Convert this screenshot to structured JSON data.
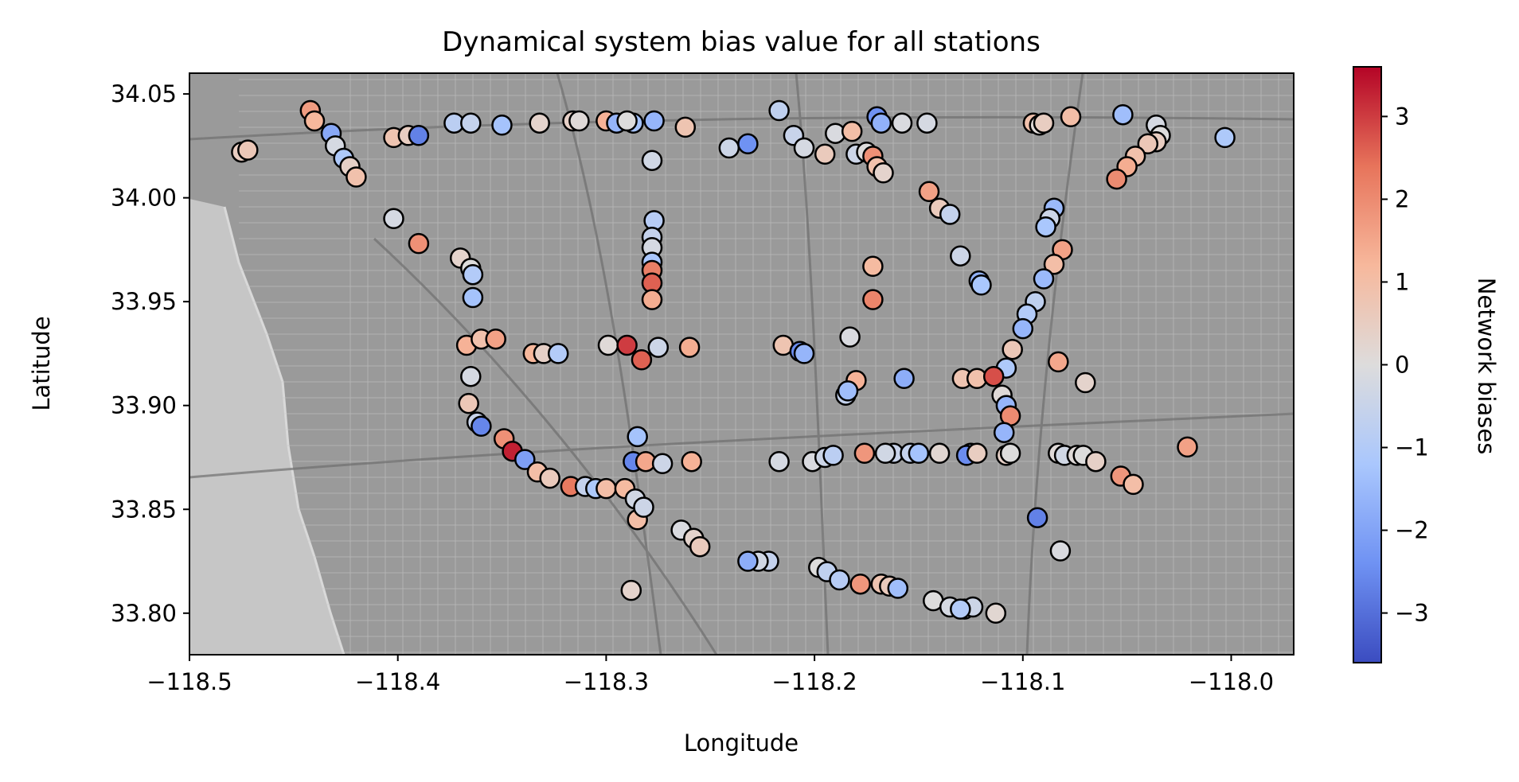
{
  "chart_data": {
    "type": "scatter",
    "title": "Dynamical system bias value for all stations",
    "xlabel": "Longitude",
    "ylabel": "Latitude",
    "xlim": [
      -118.5,
      -117.97
    ],
    "ylim": [
      33.78,
      34.06
    ],
    "xticks": [
      -118.5,
      -118.4,
      -118.3,
      -118.2,
      -118.1,
      -118.0
    ],
    "xtick_labels": [
      "−118.5",
      "−118.4",
      "−118.3",
      "−118.2",
      "−118.1",
      "−118.0"
    ],
    "yticks": [
      33.8,
      33.85,
      33.9,
      33.95,
      34.0,
      34.05
    ],
    "ytick_labels": [
      "33.80",
      "33.85",
      "33.90",
      "33.95",
      "34.00",
      "34.05"
    ],
    "grid": false,
    "background": "grayscale street basemap (Los Angeles area)",
    "colorbar": {
      "label": "Network biases",
      "colormap": "coolwarm",
      "range": [
        -3.6,
        3.6
      ],
      "ticks": [
        -3,
        -2,
        -1,
        0,
        1,
        2,
        3
      ],
      "tick_labels": [
        "−3",
        "−2",
        "−1",
        "0",
        "1",
        "2",
        "3"
      ],
      "colors": [
        "#3b4cc0",
        "#6f92f3",
        "#aac7fd",
        "#dddcdc",
        "#f7b89c",
        "#e7745b",
        "#b40426"
      ]
    },
    "points": [
      [
        -118.475,
        34.022,
        0.5
      ],
      [
        -118.472,
        34.023,
        0.7
      ],
      [
        -118.442,
        34.042,
        1.7
      ],
      [
        -118.44,
        34.037,
        1.2
      ],
      [
        -118.432,
        34.031,
        -1.9
      ],
      [
        -118.43,
        34.025,
        -0.2
      ],
      [
        -118.426,
        34.019,
        -1.1
      ],
      [
        -118.423,
        34.015,
        0.4
      ],
      [
        -118.42,
        34.01,
        0.9
      ],
      [
        -118.402,
        34.029,
        0.8
      ],
      [
        -118.395,
        34.03,
        0.5
      ],
      [
        -118.39,
        34.03,
        -2.7
      ],
      [
        -118.373,
        34.036,
        -0.8
      ],
      [
        -118.365,
        34.036,
        -0.6
      ],
      [
        -118.35,
        34.035,
        -1.3
      ],
      [
        -118.332,
        34.036,
        0.3
      ],
      [
        -118.316,
        34.037,
        0.4
      ],
      [
        -118.313,
        34.037,
        0.1
      ],
      [
        -118.3,
        34.037,
        1.3
      ],
      [
        -118.295,
        34.036,
        -1.6
      ],
      [
        -118.287,
        34.036,
        -1.3
      ],
      [
        -118.29,
        34.037,
        0.0
      ],
      [
        -118.277,
        34.037,
        -1.6
      ],
      [
        -118.262,
        34.034,
        0.8
      ],
      [
        -118.241,
        34.024,
        -0.4
      ],
      [
        -118.232,
        34.026,
        -2.4
      ],
      [
        -118.217,
        34.042,
        -0.7
      ],
      [
        -118.21,
        34.03,
        -0.5
      ],
      [
        -118.205,
        34.024,
        -0.2
      ],
      [
        -118.195,
        34.021,
        0.6
      ],
      [
        -118.19,
        34.031,
        -0.1
      ],
      [
        -118.182,
        34.032,
        1.0
      ],
      [
        -118.18,
        34.021,
        -0.4
      ],
      [
        -118.175,
        34.022,
        0.0
      ],
      [
        -118.172,
        34.02,
        1.9
      ],
      [
        -118.17,
        34.015,
        0.9
      ],
      [
        -118.167,
        34.012,
        0.3
      ],
      [
        -118.17,
        34.039,
        -2.4
      ],
      [
        -118.168,
        34.036,
        -1.7
      ],
      [
        -118.158,
        34.036,
        -0.1
      ],
      [
        -118.146,
        34.036,
        -0.2
      ],
      [
        -118.095,
        34.036,
        0.9
      ],
      [
        -118.092,
        34.035,
        0.1
      ],
      [
        -118.09,
        34.036,
        0.5
      ],
      [
        -118.077,
        34.039,
        1.0
      ],
      [
        -118.052,
        34.04,
        -1.4
      ],
      [
        -118.036,
        34.035,
        -0.2
      ],
      [
        -118.034,
        34.03,
        0.0
      ],
      [
        -118.036,
        34.027,
        0.5
      ],
      [
        -118.04,
        34.026,
        0.7
      ],
      [
        -118.046,
        34.02,
        0.9
      ],
      [
        -118.05,
        34.015,
        1.4
      ],
      [
        -118.055,
        34.009,
        2.0
      ],
      [
        -118.003,
        34.029,
        -1.1
      ],
      [
        -118.278,
        34.018,
        -0.3
      ],
      [
        -118.277,
        33.989,
        -0.9
      ],
      [
        -118.278,
        33.981,
        -0.6
      ],
      [
        -118.278,
        33.976,
        -0.2
      ],
      [
        -118.278,
        33.969,
        -1.2
      ],
      [
        -118.278,
        33.965,
        2.2
      ],
      [
        -118.278,
        33.959,
        2.6
      ],
      [
        -118.278,
        33.951,
        1.4
      ],
      [
        -118.402,
        33.99,
        -0.2
      ],
      [
        -118.39,
        33.978,
        1.9
      ],
      [
        -118.37,
        33.971,
        0.3
      ],
      [
        -118.365,
        33.966,
        0.0
      ],
      [
        -118.364,
        33.963,
        -1.0
      ],
      [
        -118.364,
        33.952,
        -1.3
      ],
      [
        -118.367,
        33.929,
        1.3
      ],
      [
        -118.36,
        33.932,
        0.9
      ],
      [
        -118.353,
        33.932,
        1.6
      ],
      [
        -118.335,
        33.925,
        1.2
      ],
      [
        -118.33,
        33.925,
        0.4
      ],
      [
        -118.323,
        33.925,
        -1.0
      ],
      [
        -118.299,
        33.929,
        0.1
      ],
      [
        -118.29,
        33.929,
        3.0
      ],
      [
        -118.283,
        33.922,
        2.6
      ],
      [
        -118.275,
        33.928,
        -0.4
      ],
      [
        -118.26,
        33.928,
        1.4
      ],
      [
        -118.215,
        33.929,
        0.8
      ],
      [
        -118.207,
        33.926,
        -2.5
      ],
      [
        -118.205,
        33.925,
        -1.6
      ],
      [
        -118.183,
        33.933,
        -0.1
      ],
      [
        -118.172,
        33.967,
        1.1
      ],
      [
        -118.172,
        33.951,
        2.1
      ],
      [
        -118.145,
        34.003,
        1.6
      ],
      [
        -118.14,
        33.995,
        0.6
      ],
      [
        -118.135,
        33.992,
        -0.6
      ],
      [
        -118.13,
        33.972,
        -0.4
      ],
      [
        -118.121,
        33.96,
        -1.7
      ],
      [
        -118.12,
        33.958,
        -1.2
      ],
      [
        -118.085,
        33.995,
        -1.5
      ],
      [
        -118.087,
        33.99,
        -0.4
      ],
      [
        -118.089,
        33.986,
        -1.2
      ],
      [
        -118.081,
        33.975,
        1.6
      ],
      [
        -118.085,
        33.968,
        1.0
      ],
      [
        -118.09,
        33.961,
        -1.5
      ],
      [
        -118.094,
        33.95,
        -0.7
      ],
      [
        -118.098,
        33.944,
        -1.0
      ],
      [
        -118.1,
        33.937,
        -1.6
      ],
      [
        -118.105,
        33.927,
        0.7
      ],
      [
        -118.108,
        33.918,
        -1.1
      ],
      [
        -118.11,
        33.905,
        0.1
      ],
      [
        -118.108,
        33.9,
        -1.6
      ],
      [
        -118.106,
        33.895,
        2.0
      ],
      [
        -118.109,
        33.887,
        -1.6
      ],
      [
        -118.108,
        33.876,
        0.4
      ],
      [
        -118.083,
        33.921,
        1.5
      ],
      [
        -118.07,
        33.911,
        0.3
      ],
      [
        -118.129,
        33.913,
        0.8
      ],
      [
        -118.122,
        33.913,
        0.9
      ],
      [
        -118.114,
        33.914,
        2.8
      ],
      [
        -118.021,
        33.88,
        1.6
      ],
      [
        -118.157,
        33.913,
        -1.8
      ],
      [
        -118.18,
        33.912,
        1.3
      ],
      [
        -118.185,
        33.905,
        -0.6
      ],
      [
        -118.184,
        33.907,
        -1.4
      ],
      [
        -118.365,
        33.914,
        -0.2
      ],
      [
        -118.366,
        33.901,
        0.7
      ],
      [
        -118.362,
        33.892,
        -0.5
      ],
      [
        -118.36,
        33.89,
        -2.6
      ],
      [
        -118.349,
        33.884,
        1.9
      ],
      [
        -118.345,
        33.878,
        3.3
      ],
      [
        -118.339,
        33.874,
        -2.1
      ],
      [
        -118.333,
        33.868,
        1.0
      ],
      [
        -118.327,
        33.865,
        0.6
      ],
      [
        -118.317,
        33.861,
        2.3
      ],
      [
        -118.31,
        33.861,
        -0.6
      ],
      [
        -118.305,
        33.86,
        -1.1
      ],
      [
        -118.3,
        33.86,
        1.0
      ],
      [
        -118.291,
        33.86,
        1.1
      ],
      [
        -118.286,
        33.855,
        -0.3
      ],
      [
        -118.285,
        33.845,
        1.0
      ],
      [
        -118.287,
        33.873,
        -2.6
      ],
      [
        -118.285,
        33.885,
        -1.3
      ],
      [
        -118.281,
        33.873,
        1.5
      ],
      [
        -118.273,
        33.872,
        -0.4
      ],
      [
        -118.259,
        33.873,
        1.3
      ],
      [
        -118.282,
        33.851,
        -0.4
      ],
      [
        -118.264,
        33.84,
        -0.1
      ],
      [
        -118.258,
        33.836,
        0.3
      ],
      [
        -118.255,
        33.832,
        0.6
      ],
      [
        -118.288,
        33.811,
        0.3
      ],
      [
        -118.222,
        33.825,
        -0.6
      ],
      [
        -118.227,
        33.825,
        -0.3
      ],
      [
        -118.232,
        33.825,
        -1.8
      ],
      [
        -118.217,
        33.873,
        -0.2
      ],
      [
        -118.201,
        33.873,
        -0.1
      ],
      [
        -118.195,
        33.875,
        -0.4
      ],
      [
        -118.191,
        33.876,
        -0.8
      ],
      [
        -118.176,
        33.877,
        1.8
      ],
      [
        -118.162,
        33.877,
        -0.5
      ],
      [
        -118.166,
        33.877,
        -0.3
      ],
      [
        -118.154,
        33.877,
        -0.6
      ],
      [
        -118.15,
        33.877,
        -1.3
      ],
      [
        -118.14,
        33.877,
        0.2
      ],
      [
        -118.125,
        33.877,
        -1.0
      ],
      [
        -118.127,
        33.876,
        -2.5
      ],
      [
        -118.122,
        33.877,
        0.5
      ],
      [
        -118.106,
        33.877,
        0.0
      ],
      [
        -118.083,
        33.877,
        0.1
      ],
      [
        -118.08,
        33.876,
        -0.3
      ],
      [
        -118.074,
        33.876,
        0.1
      ],
      [
        -118.071,
        33.876,
        0.0
      ],
      [
        -118.065,
        33.873,
        0.4
      ],
      [
        -118.053,
        33.866,
        1.8
      ],
      [
        -118.047,
        33.862,
        1.0
      ],
      [
        -118.093,
        33.846,
        -2.7
      ],
      [
        -118.082,
        33.83,
        -0.1
      ],
      [
        -118.198,
        33.822,
        0.0
      ],
      [
        -118.194,
        33.82,
        -0.7
      ],
      [
        -118.188,
        33.816,
        -0.9
      ],
      [
        -118.178,
        33.814,
        1.8
      ],
      [
        -118.168,
        33.814,
        0.8
      ],
      [
        -118.164,
        33.813,
        0.6
      ],
      [
        -118.16,
        33.812,
        -1.4
      ],
      [
        -118.143,
        33.806,
        0.0
      ],
      [
        -118.135,
        33.803,
        -0.2
      ],
      [
        -118.128,
        33.802,
        -0.3
      ],
      [
        -118.124,
        33.803,
        -0.4
      ],
      [
        -118.13,
        33.802,
        -1.0
      ],
      [
        -118.113,
        33.8,
        0.2
      ]
    ]
  }
}
